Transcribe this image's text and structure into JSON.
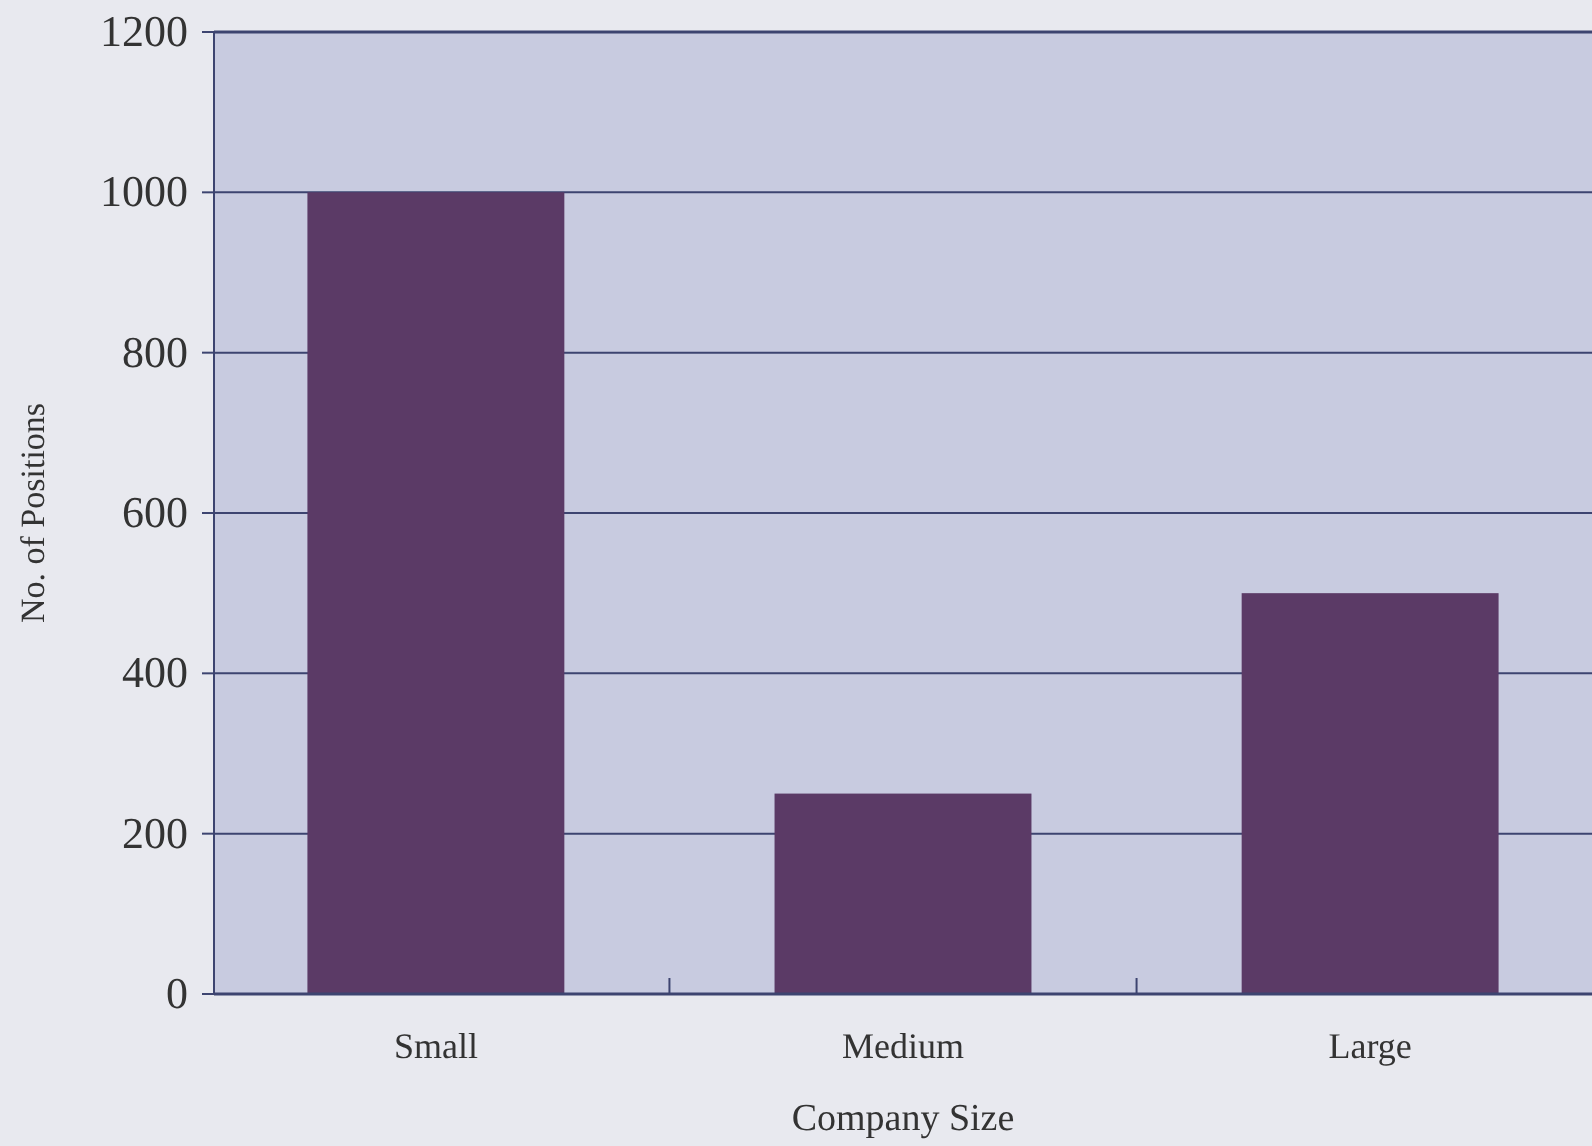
{
  "chart_data": {
    "type": "bar",
    "xlabel": "Company Size",
    "ylabel": "No. of Positions",
    "categories": [
      "Small",
      "Medium",
      "Large"
    ],
    "values": [
      1000,
      250,
      500
    ],
    "color": "#5b3a66",
    "ylim": [
      0,
      1200
    ],
    "yticks": [
      0,
      200,
      400,
      600,
      800,
      1000,
      1200
    ],
    "grid": "y"
  }
}
